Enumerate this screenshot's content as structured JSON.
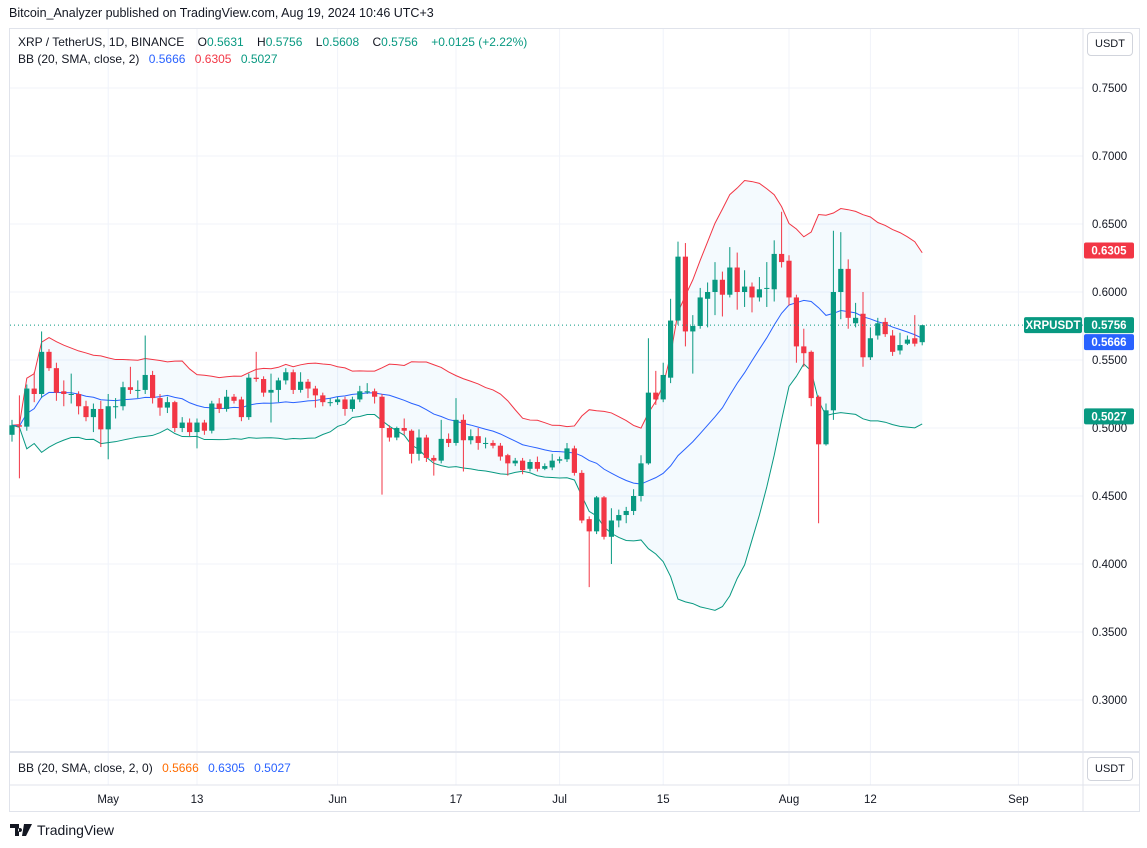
{
  "publisher_line": "Bitcoin_Analyzer published on TradingView.com, Aug 19, 2024 10:46 UTC+3",
  "legend": {
    "symbol": "XRP / TetherUS, 1D, BINANCE",
    "o_label": "O",
    "o": "0.5631",
    "h_label": "H",
    "h": "0.5756",
    "l_label": "L",
    "l": "0.5608",
    "c_label": "C",
    "c": "0.5756",
    "change": "+0.0125 (+2.22%)",
    "bb_title": "BB (20, SMA, close, 2)",
    "bb_basis": "0.5666",
    "bb_upper": "0.6305",
    "bb_lower": "0.5027"
  },
  "lower_pane_legend": {
    "title": "BB (20, SMA, close, 2, 0)",
    "v1": "0.5666",
    "v2": "0.6305",
    "v3": "0.5027"
  },
  "currency_button": "USDT",
  "currency_button_lower": "USDT",
  "branding": "TradingView",
  "price_labels": {
    "symbol_tag": "XRPUSDT",
    "last": "0.5756",
    "basis": "0.5666",
    "upper": "0.6305",
    "lower": "0.5027"
  },
  "colors": {
    "up": "#089981",
    "down": "#f23645",
    "basis": "#2962ff",
    "upper": "#f23645",
    "lower": "#089981",
    "band_fill": "#2196f3"
  },
  "chart_data": {
    "type": "candlestick",
    "symbol": "XRPUSDT",
    "interval": "1D",
    "ylim": [
      0.27,
      0.78
    ],
    "y_ticks": [
      "0.7500",
      "0.7000",
      "0.6500",
      "0.6000",
      "0.5500",
      "0.5000",
      "0.4500",
      "0.4000",
      "0.3500",
      "0.3000"
    ],
    "x_ticks": [
      {
        "label": "May",
        "date": "2024-05-01"
      },
      {
        "label": "13",
        "date": "2024-05-13"
      },
      {
        "label": "Jun",
        "date": "2024-06-01"
      },
      {
        "label": "17",
        "date": "2024-06-17"
      },
      {
        "label": "Jul",
        "date": "2024-07-01"
      },
      {
        "label": "15",
        "date": "2024-07-15"
      },
      {
        "label": "Aug",
        "date": "2024-08-01"
      },
      {
        "label": "12",
        "date": "2024-08-12"
      },
      {
        "label": "Sep",
        "date": "2024-09-01"
      }
    ],
    "grid": true,
    "bollinger": {
      "length": 20,
      "mult": 2,
      "source": "close"
    },
    "last_price": 0.5756,
    "candles_ohlc": [
      [
        "2024-04-18",
        0.495,
        0.506,
        0.49,
        0.502
      ],
      [
        "2024-04-19",
        0.502,
        0.524,
        0.463,
        0.501
      ],
      [
        "2024-04-20",
        0.501,
        0.532,
        0.498,
        0.529
      ],
      [
        "2024-04-21",
        0.529,
        0.541,
        0.519,
        0.525
      ],
      [
        "2024-04-22",
        0.525,
        0.571,
        0.522,
        0.556
      ],
      [
        "2024-04-23",
        0.556,
        0.558,
        0.542,
        0.544
      ],
      [
        "2024-04-24",
        0.544,
        0.548,
        0.52,
        0.526
      ],
      [
        "2024-04-25",
        0.527,
        0.535,
        0.516,
        0.525
      ],
      [
        "2024-04-26",
        0.525,
        0.54,
        0.518,
        0.525
      ],
      [
        "2024-04-27",
        0.525,
        0.527,
        0.51,
        0.516
      ],
      [
        "2024-04-28",
        0.516,
        0.52,
        0.505,
        0.508
      ],
      [
        "2024-04-29",
        0.508,
        0.518,
        0.497,
        0.514
      ],
      [
        "2024-04-30",
        0.514,
        0.52,
        0.486,
        0.499
      ],
      [
        "2024-05-01",
        0.499,
        0.525,
        0.477,
        0.516
      ],
      [
        "2024-05-02",
        0.516,
        0.522,
        0.507,
        0.516
      ],
      [
        "2024-05-03",
        0.516,
        0.534,
        0.513,
        0.53
      ],
      [
        "2024-05-04",
        0.53,
        0.545,
        0.525,
        0.528
      ],
      [
        "2024-05-05",
        0.528,
        0.535,
        0.522,
        0.528
      ],
      [
        "2024-05-06",
        0.528,
        0.568,
        0.525,
        0.539
      ],
      [
        "2024-05-07",
        0.539,
        0.542,
        0.518,
        0.522
      ],
      [
        "2024-05-08",
        0.522,
        0.525,
        0.509,
        0.515
      ],
      [
        "2024-05-09",
        0.515,
        0.523,
        0.511,
        0.519
      ],
      [
        "2024-05-10",
        0.519,
        0.52,
        0.497,
        0.5
      ],
      [
        "2024-05-11",
        0.5,
        0.508,
        0.497,
        0.504
      ],
      [
        "2024-05-12",
        0.504,
        0.507,
        0.494,
        0.497
      ],
      [
        "2024-05-13",
        0.497,
        0.507,
        0.485,
        0.504
      ],
      [
        "2024-05-14",
        0.504,
        0.506,
        0.495,
        0.498
      ],
      [
        "2024-05-15",
        0.498,
        0.52,
        0.496,
        0.518
      ],
      [
        "2024-05-16",
        0.518,
        0.522,
        0.511,
        0.514
      ],
      [
        "2024-05-17",
        0.514,
        0.528,
        0.512,
        0.523
      ],
      [
        "2024-05-18",
        0.523,
        0.525,
        0.518,
        0.52
      ],
      [
        "2024-05-19",
        0.521,
        0.523,
        0.505,
        0.508
      ],
      [
        "2024-05-20",
        0.508,
        0.54,
        0.506,
        0.537
      ],
      [
        "2024-05-21",
        0.537,
        0.556,
        0.534,
        0.536
      ],
      [
        "2024-05-22",
        0.536,
        0.538,
        0.523,
        0.526
      ],
      [
        "2024-05-23",
        0.526,
        0.54,
        0.504,
        0.528
      ],
      [
        "2024-05-24",
        0.528,
        0.537,
        0.519,
        0.535
      ],
      [
        "2024-05-25",
        0.535,
        0.544,
        0.532,
        0.541
      ],
      [
        "2024-05-26",
        0.541,
        0.543,
        0.525,
        0.528
      ],
      [
        "2024-05-27",
        0.528,
        0.541,
        0.526,
        0.534
      ],
      [
        "2024-05-28",
        0.534,
        0.536,
        0.522,
        0.529
      ],
      [
        "2024-05-29",
        0.529,
        0.531,
        0.515,
        0.524
      ],
      [
        "2024-05-30",
        0.524,
        0.526,
        0.516,
        0.519
      ],
      [
        "2024-05-31",
        0.519,
        0.522,
        0.516,
        0.519
      ],
      [
        "2024-06-01",
        0.519,
        0.523,
        0.517,
        0.521
      ],
      [
        "2024-06-02",
        0.521,
        0.523,
        0.509,
        0.514
      ],
      [
        "2024-06-03",
        0.514,
        0.523,
        0.512,
        0.521
      ],
      [
        "2024-06-04",
        0.521,
        0.531,
        0.519,
        0.527
      ],
      [
        "2024-06-05",
        0.527,
        0.533,
        0.525,
        0.527
      ],
      [
        "2024-06-06",
        0.527,
        0.529,
        0.518,
        0.523
      ],
      [
        "2024-06-07",
        0.523,
        0.525,
        0.451,
        0.5
      ],
      [
        "2024-06-08",
        0.5,
        0.502,
        0.49,
        0.493
      ],
      [
        "2024-06-09",
        0.493,
        0.501,
        0.491,
        0.5
      ],
      [
        "2024-06-10",
        0.5,
        0.507,
        0.495,
        0.498
      ],
      [
        "2024-06-11",
        0.498,
        0.499,
        0.474,
        0.481
      ],
      [
        "2024-06-12",
        0.481,
        0.499,
        0.476,
        0.493
      ],
      [
        "2024-06-13",
        0.493,
        0.495,
        0.475,
        0.478
      ],
      [
        "2024-06-14",
        0.478,
        0.48,
        0.465,
        0.476
      ],
      [
        "2024-06-15",
        0.476,
        0.506,
        0.474,
        0.492
      ],
      [
        "2024-06-16",
        0.492,
        0.496,
        0.486,
        0.489
      ],
      [
        "2024-06-17",
        0.489,
        0.522,
        0.487,
        0.506
      ],
      [
        "2024-06-18",
        0.506,
        0.51,
        0.468,
        0.491
      ],
      [
        "2024-06-19",
        0.491,
        0.499,
        0.488,
        0.494
      ],
      [
        "2024-06-20",
        0.494,
        0.5,
        0.484,
        0.489
      ],
      [
        "2024-06-21",
        0.489,
        0.493,
        0.485,
        0.489
      ],
      [
        "2024-06-22",
        0.489,
        0.491,
        0.485,
        0.487
      ],
      [
        "2024-06-23",
        0.487,
        0.489,
        0.476,
        0.479
      ],
      [
        "2024-06-24",
        0.48,
        0.481,
        0.465,
        0.474
      ],
      [
        "2024-06-25",
        0.474,
        0.478,
        0.472,
        0.476
      ],
      [
        "2024-06-26",
        0.476,
        0.478,
        0.466,
        0.469
      ],
      [
        "2024-06-27",
        0.47,
        0.477,
        0.468,
        0.475
      ],
      [
        "2024-06-28",
        0.475,
        0.479,
        0.468,
        0.47
      ],
      [
        "2024-06-29",
        0.47,
        0.474,
        0.469,
        0.472
      ],
      [
        "2024-06-30",
        0.471,
        0.481,
        0.469,
        0.476
      ],
      [
        "2024-07-01",
        0.476,
        0.479,
        0.474,
        0.477
      ],
      [
        "2024-07-02",
        0.477,
        0.489,
        0.475,
        0.485
      ],
      [
        "2024-07-03",
        0.485,
        0.487,
        0.465,
        0.467
      ],
      [
        "2024-07-04",
        0.467,
        0.469,
        0.43,
        0.432
      ],
      [
        "2024-07-05",
        0.433,
        0.435,
        0.383,
        0.424
      ],
      [
        "2024-07-06",
        0.424,
        0.45,
        0.422,
        0.449
      ],
      [
        "2024-07-07",
        0.449,
        0.45,
        0.418,
        0.42
      ],
      [
        "2024-07-08",
        0.42,
        0.441,
        0.4,
        0.432
      ],
      [
        "2024-07-09",
        0.432,
        0.44,
        0.427,
        0.436
      ],
      [
        "2024-07-10",
        0.436,
        0.442,
        0.43,
        0.439
      ],
      [
        "2024-07-11",
        0.439,
        0.455,
        0.436,
        0.45
      ],
      [
        "2024-07-12",
        0.45,
        0.48,
        0.446,
        0.474
      ],
      [
        "2024-07-13",
        0.474,
        0.566,
        0.473,
        0.526
      ],
      [
        "2024-07-14",
        0.526,
        0.542,
        0.517,
        0.521
      ],
      [
        "2024-07-15",
        0.521,
        0.548,
        0.519,
        0.539
      ],
      [
        "2024-07-16",
        0.537,
        0.595,
        0.533,
        0.579
      ],
      [
        "2024-07-17",
        0.579,
        0.637,
        0.576,
        0.626
      ],
      [
        "2024-07-18",
        0.626,
        0.636,
        0.56,
        0.571
      ],
      [
        "2024-07-19",
        0.571,
        0.583,
        0.54,
        0.575
      ],
      [
        "2024-07-20",
        0.575,
        0.603,
        0.573,
        0.596
      ],
      [
        "2024-07-21",
        0.595,
        0.607,
        0.574,
        0.6
      ],
      [
        "2024-07-22",
        0.6,
        0.622,
        0.583,
        0.609
      ],
      [
        "2024-07-23",
        0.609,
        0.615,
        0.582,
        0.598
      ],
      [
        "2024-07-24",
        0.598,
        0.633,
        0.596,
        0.618
      ],
      [
        "2024-07-25",
        0.618,
        0.629,
        0.587,
        0.6
      ],
      [
        "2024-07-26",
        0.6,
        0.616,
        0.589,
        0.604
      ],
      [
        "2024-07-27",
        0.604,
        0.607,
        0.585,
        0.596
      ],
      [
        "2024-07-28",
        0.596,
        0.611,
        0.593,
        0.602
      ],
      [
        "2024-07-29",
        0.603,
        0.622,
        0.589,
        0.603
      ],
      [
        "2024-07-30",
        0.602,
        0.638,
        0.593,
        0.628
      ],
      [
        "2024-07-31",
        0.628,
        0.659,
        0.618,
        0.622
      ],
      [
        "2024-08-01",
        0.623,
        0.627,
        0.59,
        0.596
      ],
      [
        "2024-08-02",
        0.596,
        0.598,
        0.548,
        0.56
      ],
      [
        "2024-08-03",
        0.56,
        0.573,
        0.545,
        0.555
      ],
      [
        "2024-08-04",
        0.556,
        0.557,
        0.516,
        0.522
      ],
      [
        "2024-08-05",
        0.523,
        0.524,
        0.43,
        0.488
      ],
      [
        "2024-08-06",
        0.488,
        0.518,
        0.487,
        0.513
      ],
      [
        "2024-08-07",
        0.513,
        0.645,
        0.506,
        0.6
      ],
      [
        "2024-08-08",
        0.6,
        0.644,
        0.58,
        0.617
      ],
      [
        "2024-08-09",
        0.617,
        0.624,
        0.573,
        0.581
      ],
      [
        "2024-08-10",
        0.577,
        0.592,
        0.574,
        0.581
      ],
      [
        "2024-08-11",
        0.584,
        0.6,
        0.545,
        0.552
      ],
      [
        "2024-08-12",
        0.552,
        0.574,
        0.55,
        0.566
      ],
      [
        "2024-08-13",
        0.568,
        0.581,
        0.565,
        0.577
      ],
      [
        "2024-08-14",
        0.578,
        0.581,
        0.567,
        0.569
      ],
      [
        "2024-08-15",
        0.568,
        0.572,
        0.553,
        0.556
      ],
      [
        "2024-08-16",
        0.557,
        0.57,
        0.554,
        0.561
      ],
      [
        "2024-08-17",
        0.562,
        0.568,
        0.561,
        0.565
      ],
      [
        "2024-08-18",
        0.566,
        0.583,
        0.56,
        0.562
      ],
      [
        "2024-08-19",
        0.5631,
        0.5756,
        0.5608,
        0.5756
      ]
    ]
  }
}
